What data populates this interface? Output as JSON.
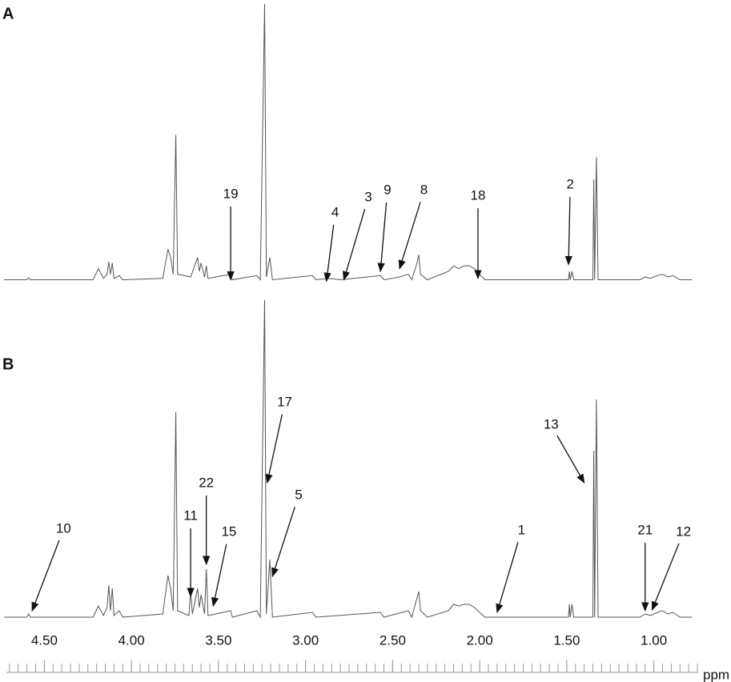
{
  "chart_data": [
    {
      "type": "line",
      "title": "A",
      "xlim": [
        4.75,
        0.75
      ],
      "ylim": [
        0,
        100
      ],
      "series": [
        {
          "color": "#555555",
          "x": [
            4.73,
            4.6,
            4.59,
            4.58,
            4.22,
            4.19,
            4.16,
            4.14,
            4.13,
            4.12,
            4.11,
            4.1,
            4.07,
            4.05,
            3.82,
            3.79,
            3.775,
            3.76,
            3.745,
            3.735,
            3.66,
            3.62,
            3.61,
            3.6,
            3.58,
            3.57,
            3.56,
            3.43,
            3.42,
            3.28,
            3.26,
            3.235,
            3.225,
            3.205,
            3.19,
            2.96,
            2.94,
            2.87,
            2.8,
            2.57,
            2.55,
            2.46,
            2.41,
            2.39,
            2.36,
            2.35,
            2.34,
            2.3,
            2.18,
            2.15,
            2.12,
            2.09,
            2.06,
            2.03,
            2.0,
            1.97,
            1.49,
            1.485,
            1.48,
            1.47,
            1.46,
            1.35,
            1.345,
            1.34,
            1.33,
            1.32,
            1.08,
            1.05,
            1.02,
            0.98,
            0.95,
            0.92,
            0.89,
            0.85,
            0.78
          ],
          "values": [
            1,
            1,
            1.8,
            1,
            1,
            5,
            1.5,
            3,
            7.5,
            3,
            7,
            1.5,
            2.5,
            1,
            1.5,
            12,
            9,
            3,
            53,
            3,
            2,
            9,
            4,
            7,
            2,
            6,
            1.5,
            3,
            1,
            2.5,
            1,
            100,
            2,
            9,
            1,
            2.5,
            1,
            1.5,
            1,
            2.5,
            1,
            2,
            3,
            1,
            7,
            10,
            3,
            1,
            4,
            6,
            5,
            6,
            6,
            5,
            3,
            1,
            1,
            4,
            1,
            4,
            1,
            1,
            37,
            1,
            45,
            1,
            1,
            2,
            1.5,
            2.5,
            3,
            2,
            2.5,
            1,
            1
          ]
        }
      ],
      "annotations": [
        {
          "text": "19",
          "x": 3.43,
          "y": 1,
          "xytext": [
            3.43,
            31.6
          ]
        },
        {
          "text": "4",
          "x": 2.88,
          "y": 0.5,
          "xytext": [
            2.83,
            25
          ]
        },
        {
          "text": "3",
          "x": 2.78,
          "y": 1,
          "xytext": [
            2.64,
            30.5
          ]
        },
        {
          "text": "9",
          "x": 2.57,
          "y": 4,
          "xytext": [
            2.53,
            33
          ]
        },
        {
          "text": "8",
          "x": 2.46,
          "y": 5,
          "xytext": [
            2.32,
            33
          ]
        },
        {
          "text": "18",
          "x": 2.01,
          "y": 1.5,
          "xytext": [
            2.01,
            31
          ]
        },
        {
          "text": "2",
          "x": 1.49,
          "y": 6.5,
          "xytext": [
            1.48,
            35
          ]
        }
      ]
    },
    {
      "type": "line",
      "title": "B",
      "xlim": [
        4.75,
        0.75
      ],
      "ylim": [
        0,
        100
      ],
      "xlabel": "ppm",
      "xminor": 0.05,
      "xticks": [
        {
          "value": 4.5,
          "label": "4.50"
        },
        {
          "value": 4.0,
          "label": "4.00"
        },
        {
          "value": 3.5,
          "label": "3.50"
        },
        {
          "value": 3.0,
          "label": "3.00"
        },
        {
          "value": 2.5,
          "label": "2.50"
        },
        {
          "value": 2.0,
          "label": "2.00"
        },
        {
          "value": 1.5,
          "label": "1.50"
        },
        {
          "value": 1.0,
          "label": "1.00"
        }
      ],
      "series": [
        {
          "color": "#555555",
          "x": [
            4.73,
            4.6,
            4.59,
            4.58,
            4.22,
            4.19,
            4.16,
            4.14,
            4.13,
            4.12,
            4.11,
            4.1,
            4.07,
            4.05,
            3.82,
            3.79,
            3.775,
            3.76,
            3.745,
            3.735,
            3.67,
            3.66,
            3.65,
            3.62,
            3.61,
            3.6,
            3.58,
            3.57,
            3.56,
            3.43,
            3.42,
            3.28,
            3.26,
            3.235,
            3.225,
            3.205,
            3.19,
            2.96,
            2.94,
            2.57,
            2.55,
            2.41,
            2.39,
            2.36,
            2.35,
            2.34,
            2.3,
            2.18,
            2.15,
            2.12,
            2.09,
            2.06,
            2.03,
            2.0,
            1.97,
            1.49,
            1.485,
            1.48,
            1.47,
            1.46,
            1.35,
            1.345,
            1.34,
            1.33,
            1.32,
            1.08,
            1.05,
            1.02,
            0.98,
            0.95,
            0.92,
            0.89,
            0.85,
            0.78
          ],
          "values": [
            1,
            1,
            2,
            1,
            1,
            4.5,
            1.5,
            4,
            11,
            3,
            10,
            1.5,
            3,
            1,
            2,
            14,
            10,
            3,
            65,
            3,
            1.5,
            9,
            2,
            10,
            4,
            8,
            2,
            16,
            1.5,
            3,
            1,
            3,
            1,
            100,
            2,
            19,
            1,
            2.5,
            1,
            2.5,
            1,
            3,
            1,
            7,
            9,
            3,
            1,
            3,
            5,
            4.5,
            5,
            5,
            4,
            2.5,
            1,
            1,
            5,
            1,
            5,
            1,
            1,
            53,
            1,
            69,
            1,
            1,
            2,
            1.5,
            2.5,
            3,
            2,
            2.5,
            1,
            1
          ]
        }
      ],
      "annotations": [
        {
          "text": "10",
          "x": 4.57,
          "y": 3,
          "xytext": [
            4.39,
            28.5
          ]
        },
        {
          "text": "11",
          "x": 3.66,
          "y": 7.5,
          "xytext": [
            3.66,
            32.5
          ]
        },
        {
          "text": "22",
          "x": 3.57,
          "y": 17.5,
          "xytext": [
            3.57,
            42.75
          ]
        },
        {
          "text": "15",
          "x": 3.53,
          "y": 4.5,
          "xytext": [
            3.44,
            27.5
          ]
        },
        {
          "text": "17",
          "x": 3.22,
          "y": 43,
          "xytext": [
            3.12,
            68
          ]
        },
        {
          "text": "5",
          "x": 3.19,
          "y": 13.75,
          "xytext": [
            3.04,
            39
          ]
        },
        {
          "text": "1",
          "x": 1.9,
          "y": 2.5,
          "xytext": [
            1.76,
            28
          ]
        },
        {
          "text": "13",
          "x": 1.4,
          "y": 43,
          "xytext": [
            1.59,
            61
          ]
        },
        {
          "text": "21",
          "x": 1.05,
          "y": 3,
          "xytext": [
            1.05,
            28
          ]
        },
        {
          "text": "12",
          "x": 1.01,
          "y": 3.25,
          "xytext": [
            0.83,
            27.5
          ]
        }
      ]
    }
  ]
}
